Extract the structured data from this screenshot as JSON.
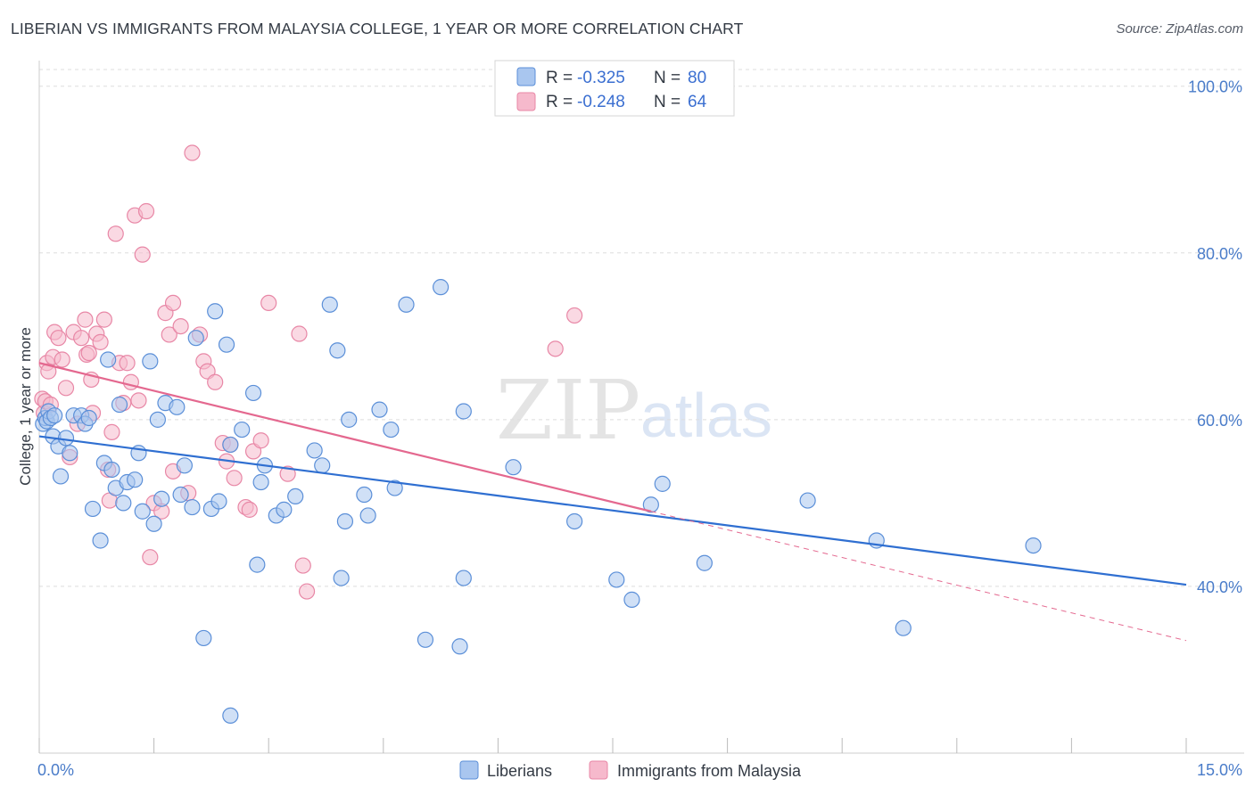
{
  "title": "LIBERIAN VS IMMIGRANTS FROM MALAYSIA COLLEGE, 1 YEAR OR MORE CORRELATION CHART",
  "source": "Source: ZipAtlas.com",
  "watermark": {
    "zip": "ZIP",
    "atlas": "atlas"
  },
  "colors": {
    "blue_fill": "#a9c6ef",
    "blue_stroke": "#5b8fd8",
    "blue_line": "#2f6fd1",
    "pink_fill": "#f6b9cc",
    "pink_stroke": "#e887a6",
    "pink_line": "#e4688f",
    "tick_text": "#4a7cc9",
    "grid": "#dddddd"
  },
  "legend": {
    "rows": [
      {
        "r_label": "R = ",
        "r_value": "-0.325",
        "n_label": "N = ",
        "n_value": "80"
      },
      {
        "r_label": "R = ",
        "r_value": "-0.248",
        "n_label": "N = ",
        "n_value": "64"
      }
    ]
  },
  "chart_data": {
    "type": "scatter",
    "title": "LIBERIAN VS IMMIGRANTS FROM MALAYSIA COLLEGE, 1 YEAR OR MORE CORRELATION CHART",
    "xlabel": "",
    "ylabel": "College, 1 year or more",
    "xlim": [
      0,
      15
    ],
    "ylim": [
      20,
      102
    ],
    "x_tick_labels": [
      "0.0%",
      "15.0%"
    ],
    "y_ticks": [
      40,
      60,
      80,
      100
    ],
    "y_tick_labels": [
      "40.0%",
      "60.0%",
      "80.0%",
      "100.0%"
    ],
    "grid": true,
    "legend_position": "top-center",
    "series": [
      {
        "name": "Liberians",
        "r": -0.325,
        "n": 80,
        "trend": {
          "x": [
            0,
            15
          ],
          "y": [
            58.0,
            40.2
          ],
          "dashed_extension": false
        },
        "points": [
          [
            0.05,
            59.5
          ],
          [
            0.08,
            60.2
          ],
          [
            0.1,
            59.8
          ],
          [
            0.12,
            61
          ],
          [
            0.15,
            60.2
          ],
          [
            0.18,
            58
          ],
          [
            0.2,
            60.5
          ],
          [
            0.25,
            56.8
          ],
          [
            0.28,
            53.2
          ],
          [
            0.35,
            57.8
          ],
          [
            0.4,
            56
          ],
          [
            0.45,
            60.5
          ],
          [
            0.55,
            60.5
          ],
          [
            0.6,
            59.5
          ],
          [
            0.65,
            60.2
          ],
          [
            0.7,
            49.3
          ],
          [
            0.8,
            45.5
          ],
          [
            0.85,
            54.8
          ],
          [
            0.9,
            67.2
          ],
          [
            0.95,
            54
          ],
          [
            1.0,
            51.8
          ],
          [
            1.05,
            61.8
          ],
          [
            1.1,
            50
          ],
          [
            1.15,
            52.5
          ],
          [
            1.25,
            52.8
          ],
          [
            1.3,
            56
          ],
          [
            1.35,
            49
          ],
          [
            1.45,
            67
          ],
          [
            1.5,
            47.5
          ],
          [
            1.55,
            60
          ],
          [
            1.6,
            50.5
          ],
          [
            1.65,
            62
          ],
          [
            1.8,
            61.5
          ],
          [
            1.85,
            51
          ],
          [
            1.9,
            54.5
          ],
          [
            2.0,
            49.5
          ],
          [
            2.05,
            69.8
          ],
          [
            2.15,
            33.8
          ],
          [
            2.25,
            49.3
          ],
          [
            2.3,
            73
          ],
          [
            2.35,
            50.2
          ],
          [
            2.45,
            69
          ],
          [
            2.5,
            57
          ],
          [
            2.5,
            24.5
          ],
          [
            2.65,
            58.8
          ],
          [
            2.8,
            63.2
          ],
          [
            2.85,
            42.6
          ],
          [
            2.9,
            52.5
          ],
          [
            2.95,
            54.5
          ],
          [
            3.1,
            48.5
          ],
          [
            3.2,
            49.2
          ],
          [
            3.35,
            50.8
          ],
          [
            3.6,
            56.3
          ],
          [
            3.7,
            54.5
          ],
          [
            3.8,
            73.8
          ],
          [
            3.9,
            68.3
          ],
          [
            3.95,
            41
          ],
          [
            4.0,
            47.8
          ],
          [
            4.05,
            60
          ],
          [
            4.25,
            51
          ],
          [
            4.3,
            48.5
          ],
          [
            4.45,
            61.2
          ],
          [
            4.6,
            58.8
          ],
          [
            4.65,
            51.8
          ],
          [
            4.8,
            73.8
          ],
          [
            5.05,
            33.6
          ],
          [
            5.25,
            75.9
          ],
          [
            5.5,
            32.8
          ],
          [
            5.55,
            41
          ],
          [
            5.55,
            61
          ],
          [
            6.2,
            54.3
          ],
          [
            7.0,
            47.8
          ],
          [
            7.55,
            40.8
          ],
          [
            7.75,
            38.4
          ],
          [
            8.0,
            49.8
          ],
          [
            8.15,
            52.3
          ],
          [
            8.7,
            42.8
          ],
          [
            10.05,
            50.3
          ],
          [
            10.95,
            45.5
          ],
          [
            11.3,
            35
          ],
          [
            13.0,
            44.9
          ]
        ]
      },
      {
        "name": "Immigrants from Malaysia",
        "r": -0.248,
        "n": 64,
        "trend": {
          "x": [
            0,
            8.0
          ],
          "y": [
            66.8,
            49.0
          ],
          "dashed_extension": true,
          "dash_x": [
            8.0,
            15
          ],
          "dash_y": [
            49.0,
            33.5
          ]
        },
        "points": [
          [
            0.04,
            62.5
          ],
          [
            0.06,
            60.8
          ],
          [
            0.08,
            62.2
          ],
          [
            0.1,
            66.8
          ],
          [
            0.12,
            65.8
          ],
          [
            0.15,
            61.8
          ],
          [
            0.18,
            67.5
          ],
          [
            0.2,
            70.5
          ],
          [
            0.25,
            69.8
          ],
          [
            0.3,
            67.2
          ],
          [
            0.35,
            63.8
          ],
          [
            0.4,
            55.5
          ],
          [
            0.45,
            70.5
          ],
          [
            0.5,
            59.5
          ],
          [
            0.55,
            69.8
          ],
          [
            0.6,
            72
          ],
          [
            0.62,
            67.8
          ],
          [
            0.65,
            68
          ],
          [
            0.68,
            64.8
          ],
          [
            0.7,
            60.8
          ],
          [
            0.75,
            70.3
          ],
          [
            0.8,
            69.3
          ],
          [
            0.85,
            72
          ],
          [
            0.9,
            54
          ],
          [
            0.92,
            50.3
          ],
          [
            0.95,
            58.5
          ],
          [
            1.0,
            82.3
          ],
          [
            1.05,
            66.8
          ],
          [
            1.1,
            62
          ],
          [
            1.15,
            66.8
          ],
          [
            1.2,
            64.5
          ],
          [
            1.25,
            84.5
          ],
          [
            1.3,
            62.3
          ],
          [
            1.35,
            79.8
          ],
          [
            1.4,
            85
          ],
          [
            1.45,
            43.5
          ],
          [
            1.5,
            50
          ],
          [
            1.6,
            49
          ],
          [
            1.65,
            72.8
          ],
          [
            1.7,
            70.2
          ],
          [
            1.75,
            53.8
          ],
          [
            1.75,
            74
          ],
          [
            1.85,
            71.2
          ],
          [
            1.95,
            51.2
          ],
          [
            2.0,
            92
          ],
          [
            2.1,
            70.2
          ],
          [
            2.15,
            67
          ],
          [
            2.2,
            65.8
          ],
          [
            2.3,
            64.5
          ],
          [
            2.4,
            57.2
          ],
          [
            2.45,
            55
          ],
          [
            2.5,
            57
          ],
          [
            2.55,
            53
          ],
          [
            2.7,
            49.5
          ],
          [
            2.75,
            49.2
          ],
          [
            2.8,
            56.2
          ],
          [
            2.9,
            57.5
          ],
          [
            3.0,
            74
          ],
          [
            3.25,
            53.5
          ],
          [
            3.4,
            70.3
          ],
          [
            3.45,
            42.5
          ],
          [
            3.5,
            39.4
          ],
          [
            6.75,
            68.5
          ],
          [
            7.0,
            72.5
          ]
        ]
      }
    ]
  },
  "bottom_legend": [
    {
      "label": "Liberians"
    },
    {
      "label": "Immigrants from Malaysia"
    }
  ]
}
